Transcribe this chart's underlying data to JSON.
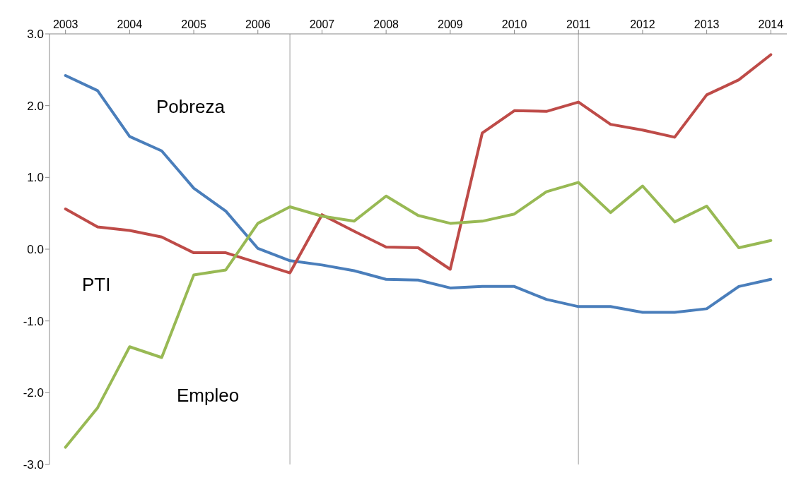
{
  "chart_data": {
    "type": "line",
    "x": [
      2003,
      2003.5,
      2004,
      2004.5,
      2005,
      2005.5,
      2006,
      2006.5,
      2007,
      2007.5,
      2008,
      2008.5,
      2009,
      2009.5,
      2010,
      2010.5,
      2011,
      2011.5,
      2012,
      2012.5,
      2013,
      2013.5,
      2014
    ],
    "series": [
      {
        "name": "Pobreza",
        "color": "#4a7ebb",
        "values": [
          2.42,
          2.21,
          1.57,
          1.37,
          0.85,
          0.53,
          0.01,
          -0.16,
          -0.22,
          -0.3,
          -0.42,
          -0.43,
          -0.54,
          -0.52,
          -0.52,
          -0.7,
          -0.8,
          -0.8,
          -0.88,
          -0.88,
          -0.83,
          -0.52,
          -0.42
        ]
      },
      {
        "name": "PTI",
        "color": "#be4b48",
        "values": [
          0.56,
          0.31,
          0.26,
          0.17,
          -0.05,
          -0.05,
          -0.19,
          -0.33,
          0.48,
          0.25,
          0.03,
          0.02,
          -0.28,
          1.62,
          1.93,
          1.92,
          2.05,
          1.74,
          1.66,
          1.56,
          2.15,
          2.36,
          2.71
        ]
      },
      {
        "name": "Empleo",
        "color": "#98b954",
        "values": [
          -2.76,
          -2.21,
          -1.36,
          -1.51,
          -0.36,
          -0.29,
          0.36,
          0.59,
          0.46,
          0.39,
          0.74,
          0.47,
          0.36,
          0.39,
          0.49,
          0.8,
          0.93,
          0.51,
          0.88,
          0.38,
          0.6,
          0.02,
          0.12
        ]
      }
    ],
    "xlim": [
      2002.75,
      2014.25
    ],
    "xticks": [
      2003,
      2004,
      2005,
      2006,
      2007,
      2008,
      2009,
      2010,
      2011,
      2012,
      2013,
      2014
    ],
    "ylim": [
      -3,
      3
    ],
    "yticks": [
      {
        "value": -3,
        "label": "-3.0"
      },
      {
        "value": -2,
        "label": "-2.0"
      },
      {
        "value": -1,
        "label": "-1.0"
      },
      {
        "value": 0,
        "label": "0.0"
      },
      {
        "value": 1,
        "label": "1.0"
      },
      {
        "value": 2,
        "label": "2.0"
      },
      {
        "value": 3,
        "label": "3.0"
      }
    ],
    "ref_lines": [
      {
        "axis": "x",
        "value": 2006.5,
        "color": "#bfbfbf"
      },
      {
        "axis": "x",
        "value": 2011,
        "color": "#bfbfbf"
      }
    ],
    "grid": false,
    "marker": "none",
    "line_style": "solid"
  }
}
